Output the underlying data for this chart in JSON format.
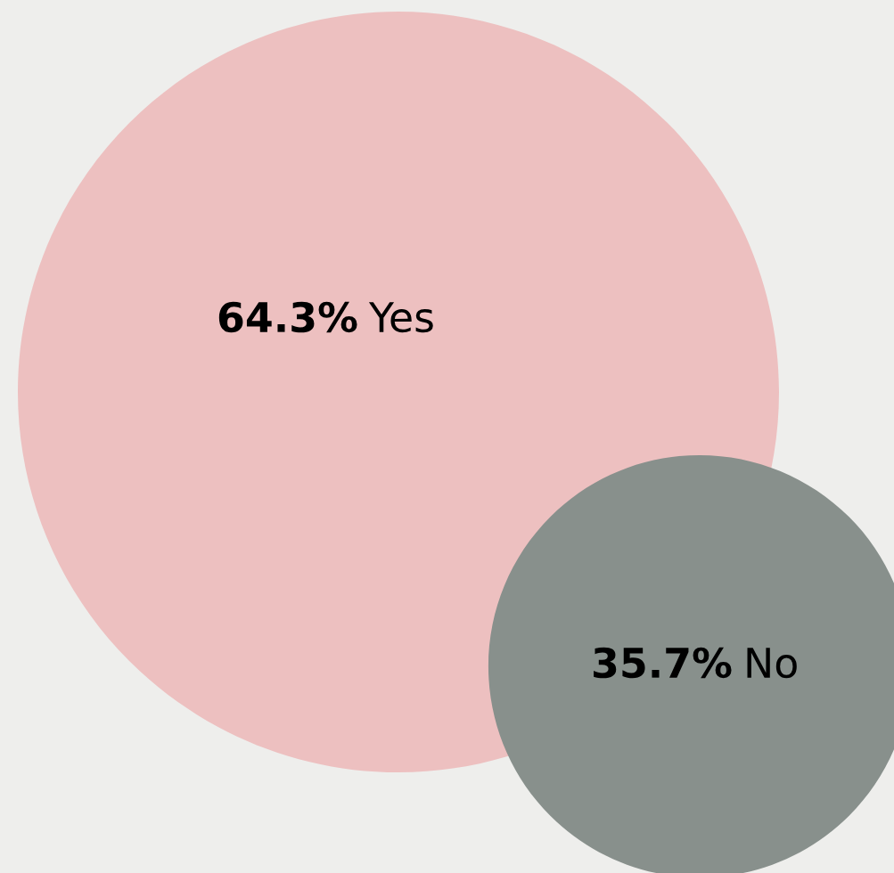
{
  "chart_data": {
    "type": "other",
    "categories": [
      "Yes",
      "No"
    ],
    "values": [
      64.3,
      35.7
    ],
    "value_labels": [
      "64.3%",
      "35.7%"
    ],
    "colors": [
      "#edc0c0",
      "#88908c"
    ]
  }
}
